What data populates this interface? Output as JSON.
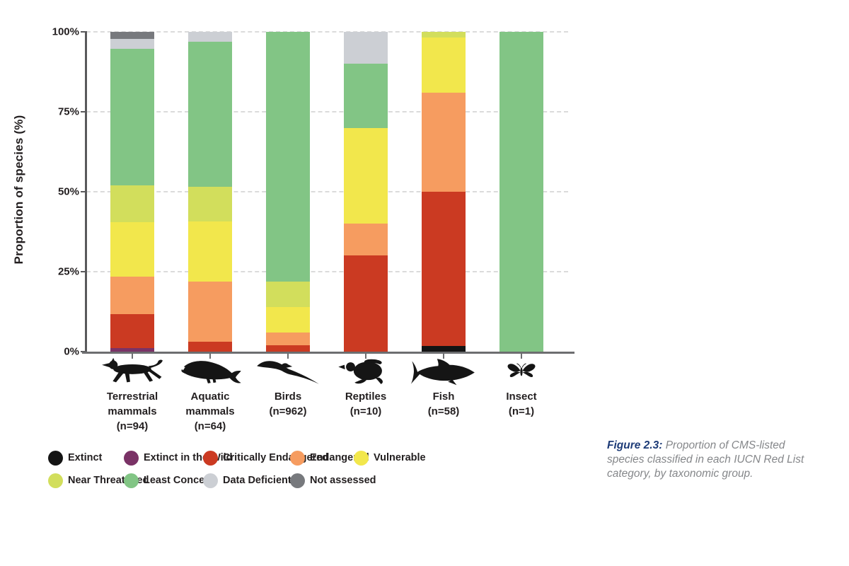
{
  "figure": {
    "caption": {
      "lead": "Figure 2.3:",
      "text": " Proportion of CMS-listed species classified in each IUCN Red List category, by taxonomic group."
    }
  },
  "chart_data": {
    "type": "bar",
    "subtype": "stacked-percentage-bar",
    "title": "",
    "ylabel": "Proportion of species (%)",
    "xlabel": "",
    "ylim": [
      0,
      100
    ],
    "grid": "dashed horizontal at 25/50/75/100",
    "legend_position": "bottom",
    "y_ticks": [
      {
        "value": 0,
        "label": "0%"
      },
      {
        "value": 25,
        "label": "25%"
      },
      {
        "value": 50,
        "label": "50%"
      },
      {
        "value": 75,
        "label": "75%"
      },
      {
        "value": 100,
        "label": "100%"
      }
    ],
    "categories_stack_order": [
      "extinct",
      "extinct_in_the_wild",
      "critically_endangered",
      "endangered",
      "vulnerable",
      "near_threatened",
      "least_concern",
      "data_deficient",
      "not_assessed"
    ],
    "iucn_categories": {
      "extinct": {
        "label": "Extinct",
        "color": "#141414"
      },
      "extinct_in_the_wild": {
        "label": "Extinct in the Wild",
        "color": "#7A3266"
      },
      "critically_endangered": {
        "label": "Critically Endangered",
        "color": "#CB3A22"
      },
      "endangered": {
        "label": "Endangered",
        "color": "#F69C60"
      },
      "vulnerable": {
        "label": "Vulnerable",
        "color": "#F2E74C"
      },
      "near_threatened": {
        "label": "Near Threatened",
        "color": "#D2DE5C"
      },
      "least_concern": {
        "label": "Least Concern",
        "color": "#82C585"
      },
      "data_deficient": {
        "label": "Data Deficient",
        "color": "#CCCFD4"
      },
      "not_assessed": {
        "label": "Not assessed",
        "color": "#77797D"
      }
    },
    "legend_rows": [
      [
        "extinct",
        "extinct_in_the_wild",
        "critically_endangered",
        "endangered",
        "vulnerable"
      ],
      [
        "near_threatened",
        "least_concern",
        "data_deficient",
        "not_assessed"
      ]
    ],
    "groups": [
      {
        "name": "Terrestrial mammals",
        "n_label": "(n=94)",
        "n": 94,
        "icon": "cheetah",
        "values_pct": {
          "extinct_in_the_wild": 1.1,
          "critically_endangered": 10.6,
          "endangered": 11.7,
          "vulnerable": 17.0,
          "near_threatened": 11.7,
          "least_concern": 42.6,
          "data_deficient": 3.2,
          "not_assessed": 2.1
        }
      },
      {
        "name": "Aquatic mammals",
        "n_label": "(n=64)",
        "n": 64,
        "icon": "whale",
        "values_pct": {
          "critically_endangered": 3.1,
          "endangered": 18.8,
          "vulnerable": 18.8,
          "near_threatened": 10.9,
          "least_concern": 45.3,
          "data_deficient": 3.1
        }
      },
      {
        "name": "Birds",
        "n_label": "(n=962)",
        "n": 962,
        "icon": "albatross",
        "values_pct": {
          "critically_endangered": 2.0,
          "endangered": 4.0,
          "vulnerable": 8.0,
          "near_threatened": 8.0,
          "least_concern": 78.0
        }
      },
      {
        "name": "Reptiles",
        "n_label": "(n=10)",
        "n": 10,
        "icon": "turtle",
        "values_pct": {
          "critically_endangered": 30.0,
          "endangered": 10.0,
          "vulnerable": 30.0,
          "least_concern": 20.0,
          "data_deficient": 10.0
        }
      },
      {
        "name": "Fish",
        "n_label": "(n=58)",
        "n": 58,
        "icon": "shark",
        "values_pct": {
          "extinct": 1.7,
          "critically_endangered": 48.3,
          "endangered": 31.0,
          "vulnerable": 17.3,
          "near_threatened": 1.7
        }
      },
      {
        "name": "Insect",
        "n_label": "(n=1)",
        "n": 1,
        "icon": "butterfly",
        "values_pct": {
          "least_concern": 100.0
        }
      }
    ]
  }
}
